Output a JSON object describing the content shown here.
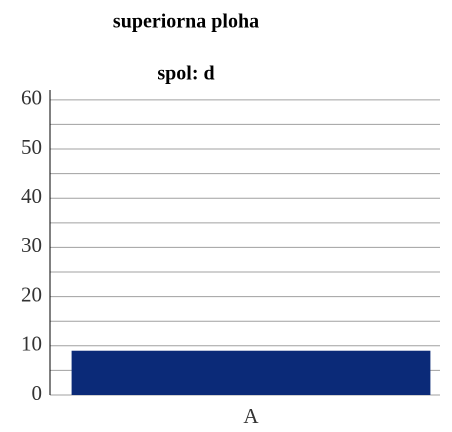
{
  "chart_data": {
    "type": "bar",
    "title": "superiorna ploha",
    "subtitle": "spol: d",
    "categories": [
      "A"
    ],
    "values": [
      9
    ],
    "color": "#0b2a78",
    "ylim": [
      0,
      62
    ],
    "yticks": [
      0,
      10,
      20,
      30,
      40,
      50,
      60
    ],
    "minor_yticks": [
      5,
      15,
      25,
      35,
      45,
      55
    ],
    "grid": true
  }
}
